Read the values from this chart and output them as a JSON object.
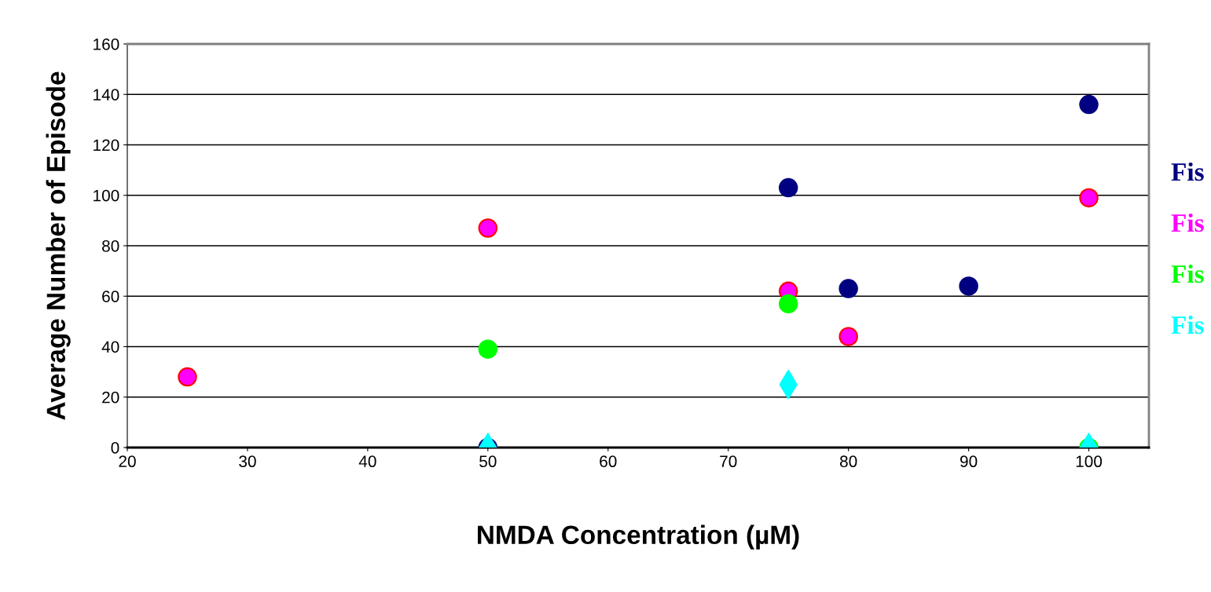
{
  "chart_data": {
    "type": "scatter",
    "xlabel": "NMDA Concentration (µM)",
    "ylabel": "Average Number of Episode",
    "xlim": [
      20,
      105
    ],
    "xticks": [
      20,
      30,
      40,
      50,
      60,
      70,
      80,
      90,
      100
    ],
    "ylim": [
      0,
      160
    ],
    "yticks": [
      0,
      20,
      40,
      60,
      80,
      100,
      120,
      140,
      160
    ],
    "grid": "y",
    "legend": "right",
    "marker": "circle",
    "series": [
      {
        "name": "Fis",
        "color": "#000080",
        "x": [
          50,
          75,
          80,
          90,
          100
        ],
        "values": [
          0,
          103,
          63,
          64,
          136
        ]
      },
      {
        "name": "Fis",
        "color": "#ff00ff",
        "x": [
          25,
          50,
          75,
          80,
          100
        ],
        "values": [
          28,
          87,
          62,
          44,
          99
        ]
      },
      {
        "name": "Fis",
        "color": "#00ff00",
        "x": [
          50,
          75,
          100
        ],
        "values": [
          39,
          57,
          0
        ]
      },
      {
        "name": "Fis",
        "color": "#00ffff",
        "marker": "diamond",
        "x": [
          50,
          75,
          100
        ],
        "values": [
          0,
          25,
          0
        ]
      }
    ]
  }
}
